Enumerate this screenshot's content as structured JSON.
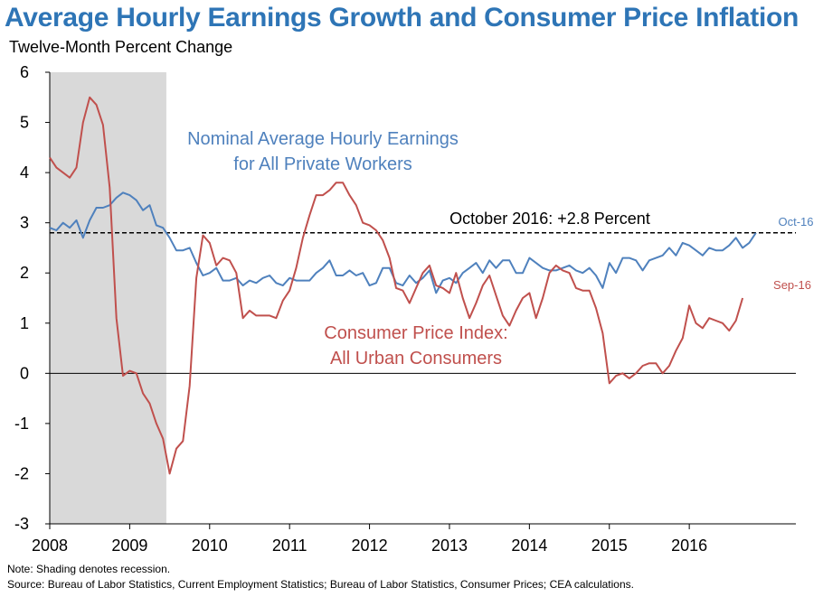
{
  "header": {
    "title": "Average Hourly Earnings Growth and Consumer Price Inflation",
    "subtitle": "Twelve-Month Percent Change"
  },
  "footer": {
    "note": "Note: Shading denotes recession.",
    "source": "Source: Bureau of Labor Statistics, Current Employment Statistics; Bureau of Labor Statistics, Consumer Prices; CEA calculations."
  },
  "chart_data": {
    "type": "line",
    "title": "Average Hourly Earnings Growth and Consumer Price Inflation",
    "ylabel": "Twelve-Month Percent Change",
    "xlabel": "",
    "x_start": "2008-01",
    "x_range": [
      0,
      112
    ],
    "ylim": [
      -3,
      6
    ],
    "yticks": [
      "6",
      "5",
      "4",
      "3",
      "2",
      "1",
      "0",
      "-1",
      "-2",
      "-3"
    ],
    "xticks": [
      {
        "label": "2008",
        "month": 0
      },
      {
        "label": "2009",
        "month": 12
      },
      {
        "label": "2010",
        "month": 24
      },
      {
        "label": "2011",
        "month": 36
      },
      {
        "label": "2012",
        "month": 48
      },
      {
        "label": "2013",
        "month": 60
      },
      {
        "label": "2014",
        "month": 72
      },
      {
        "label": "2015",
        "month": 84
      },
      {
        "label": "2016",
        "month": 96
      }
    ],
    "recession": {
      "start_month": 0,
      "end_month": 17.5
    },
    "colors": {
      "earnings": "#4F81BD",
      "cpi": "#C0504D",
      "annotation": "#000000",
      "shading": "#D9D9D9"
    },
    "reference_line": {
      "value": 2.8,
      "label": "October 2016: +2.8 Percent"
    },
    "series": [
      {
        "name": "Nominal Average Hourly Earnings for All Private Workers",
        "label_lines": [
          "Nominal Average Hourly Earnings",
          "for All Private Workers"
        ],
        "end_label": "Oct-16",
        "values": [
          2.9,
          2.85,
          3.0,
          2.9,
          3.05,
          2.7,
          3.05,
          3.3,
          3.3,
          3.35,
          3.5,
          3.6,
          3.55,
          3.45,
          3.25,
          3.35,
          2.95,
          2.9,
          2.7,
          2.45,
          2.45,
          2.5,
          2.2,
          1.95,
          2.0,
          2.1,
          1.85,
          1.85,
          1.9,
          1.75,
          1.85,
          1.8,
          1.9,
          1.95,
          1.8,
          1.75,
          1.9,
          1.85,
          1.85,
          1.85,
          2.0,
          2.1,
          2.25,
          1.95,
          1.95,
          2.05,
          1.95,
          2.0,
          1.75,
          1.8,
          2.1,
          2.1,
          1.8,
          1.75,
          1.95,
          1.8,
          1.9,
          2.05,
          1.6,
          1.85,
          1.9,
          1.8,
          2.0,
          2.1,
          2.2,
          2.0,
          2.25,
          2.1,
          2.25,
          2.25,
          2.0,
          2.0,
          2.3,
          2.2,
          2.1,
          2.05,
          2.05,
          2.1,
          2.15,
          2.05,
          2.0,
          2.1,
          1.95,
          1.7,
          2.2,
          2.0,
          2.3,
          2.3,
          2.25,
          2.05,
          2.25,
          2.3,
          2.35,
          2.5,
          2.35,
          2.6,
          2.55,
          2.45,
          2.35,
          2.5,
          2.45,
          2.45,
          2.55,
          2.7,
          2.5,
          2.6,
          2.8
        ]
      },
      {
        "name": "Consumer Price Index: All Urban Consumers",
        "label_lines": [
          "Consumer Price Index:",
          "All Urban Consumers"
        ],
        "end_label": "Sep-16",
        "values": [
          4.3,
          4.1,
          4.0,
          3.9,
          4.1,
          5.0,
          5.5,
          5.35,
          4.95,
          3.7,
          1.1,
          -0.05,
          0.05,
          0.0,
          -0.4,
          -0.6,
          -1.0,
          -1.3,
          -2.0,
          -1.5,
          -1.35,
          -0.25,
          1.9,
          2.75,
          2.6,
          2.15,
          2.3,
          2.25,
          2.0,
          1.1,
          1.25,
          1.15,
          1.15,
          1.15,
          1.1,
          1.45,
          1.65,
          2.1,
          2.7,
          3.15,
          3.55,
          3.55,
          3.65,
          3.8,
          3.8,
          3.55,
          3.35,
          3.0,
          2.95,
          2.85,
          2.65,
          2.3,
          1.7,
          1.65,
          1.4,
          1.7,
          2.0,
          2.15,
          1.75,
          1.7,
          1.6,
          2.0,
          1.5,
          1.1,
          1.4,
          1.75,
          1.95,
          1.55,
          1.15,
          0.95,
          1.25,
          1.5,
          1.6,
          1.1,
          1.5,
          2.0,
          2.15,
          2.05,
          2.0,
          1.7,
          1.65,
          1.65,
          1.3,
          0.8,
          -0.2,
          -0.05,
          0.0,
          -0.1,
          0.0,
          0.15,
          0.2,
          0.2,
          0.0,
          0.15,
          0.45,
          0.7,
          1.35,
          1.0,
          0.9,
          1.1,
          1.05,
          1.0,
          0.85,
          1.05,
          1.5
        ]
      }
    ]
  }
}
